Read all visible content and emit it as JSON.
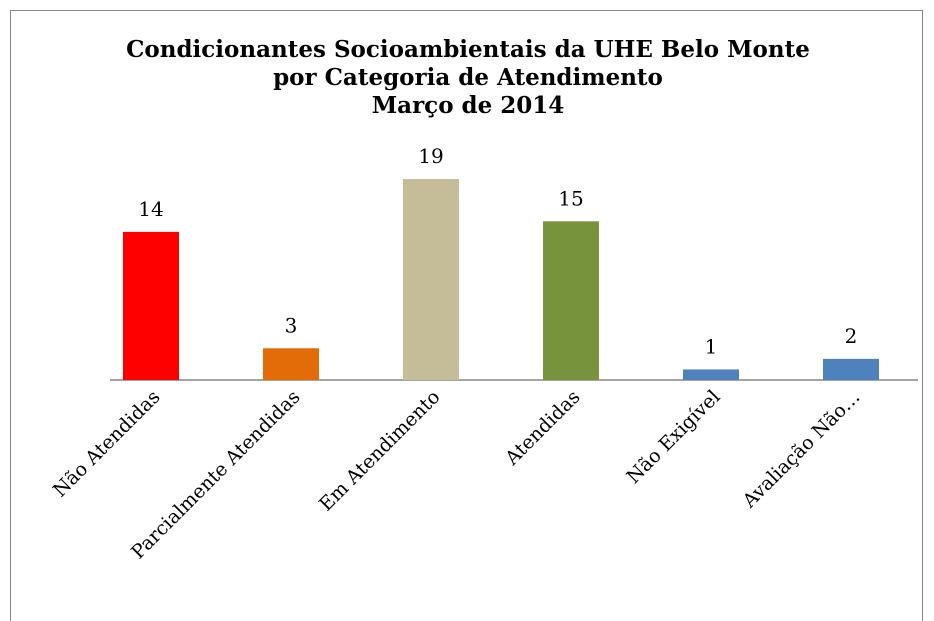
{
  "chart_data": {
    "type": "bar",
    "title": [
      "Condicionantes Socioambientais da UHE Belo Monte",
      "por Categoria de Atendimento",
      "Março de 2014"
    ],
    "categories": [
      "Não Atendidas",
      "Parcialmente Atendidas",
      "Em Atendimento",
      "Atendidas",
      "Não Exigível",
      "Avaliação Não…"
    ],
    "values": [
      14,
      3,
      19,
      15,
      1,
      2
    ],
    "colors": [
      "#ff0000",
      "#e36c09",
      "#c4bd97",
      "#77933c",
      "#4f81bd",
      "#4f81bd"
    ],
    "ylim": [
      0,
      20
    ]
  }
}
